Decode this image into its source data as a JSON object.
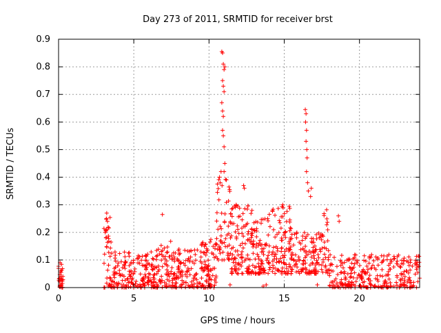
{
  "chart_data": {
    "type": "scatter",
    "title": "Day 273 of 2011, SRMTID for receiver brst",
    "xlabel": "GPS time / hours",
    "ylabel": "SRMTID / TECUs",
    "xlim": [
      0,
      24
    ],
    "ylim": [
      0,
      0.9
    ],
    "x_ticks": [
      0,
      5,
      10,
      15,
      20
    ],
    "y_ticks": [
      0,
      0.1,
      0.2,
      0.3,
      0.4,
      0.5,
      0.6,
      0.7,
      0.8,
      0.9
    ],
    "grid": true,
    "marker": "+",
    "color": "#ff0000",
    "series": [
      {
        "name": "SRMTID",
        "clusters": [
          {
            "x_range": [
              0.0,
              0.3
            ],
            "y_range": [
              0.0,
              0.09
            ],
            "n": 30
          },
          {
            "x_range": [
              3.0,
              3.5
            ],
            "y_range": [
              0.0,
              0.27
            ],
            "n": 40
          },
          {
            "x_range": [
              3.5,
              6.5
            ],
            "y_range": [
              0.0,
              0.13
            ],
            "n": 180
          },
          {
            "x_range": [
              6.5,
              7.5
            ],
            "y_range": [
              0.0,
              0.17
            ],
            "n": 60
          },
          {
            "x_range": [
              7.5,
              9.5
            ],
            "y_range": [
              0.0,
              0.14
            ],
            "n": 120
          },
          {
            "x_range": [
              9.5,
              10.5
            ],
            "y_range": [
              0.0,
              0.18
            ],
            "n": 80
          },
          {
            "x_range": [
              10.5,
              11.5
            ],
            "y_range": [
              0.1,
              0.4
            ],
            "n": 60
          },
          {
            "x_range": [
              11.5,
              13.0
            ],
            "y_range": [
              0.05,
              0.3
            ],
            "n": 120
          },
          {
            "x_range": [
              13.0,
              14.0
            ],
            "y_range": [
              0.05,
              0.25
            ],
            "n": 70
          },
          {
            "x_range": [
              14.0,
              15.5
            ],
            "y_range": [
              0.05,
              0.3
            ],
            "n": 110
          },
          {
            "x_range": [
              15.5,
              17.5
            ],
            "y_range": [
              0.05,
              0.2
            ],
            "n": 120
          },
          {
            "x_range": [
              17.5,
              18.0
            ],
            "y_range": [
              0.05,
              0.3
            ],
            "n": 30
          },
          {
            "x_range": [
              18.0,
              24.0
            ],
            "y_range": [
              0.0,
              0.12
            ],
            "n": 300
          }
        ],
        "points": [
          [
            0.1,
            0.09
          ],
          [
            6.9,
            0.265
          ],
          [
            12.3,
            0.37
          ],
          [
            12.35,
            0.36
          ],
          [
            11.8,
            0.3
          ],
          [
            18.6,
            0.26
          ],
          [
            18.65,
            0.24
          ],
          [
            14.9,
            0.3
          ],
          [
            13.9,
            0.25
          ],
          [
            16.8,
            0.36
          ],
          [
            16.75,
            0.33
          ],
          [
            3.2,
            0.27
          ],
          [
            3.25,
            0.24
          ],
          [
            3.1,
            0.2
          ],
          [
            3.15,
            0.18
          ],
          [
            10.85,
            0.855
          ],
          [
            10.9,
            0.85
          ],
          [
            10.95,
            0.81
          ],
          [
            11.0,
            0.79
          ],
          [
            11.05,
            0.8
          ],
          [
            10.9,
            0.75
          ],
          [
            10.95,
            0.73
          ],
          [
            11.0,
            0.71
          ],
          [
            10.85,
            0.67
          ],
          [
            10.9,
            0.64
          ],
          [
            10.95,
            0.62
          ],
          [
            10.9,
            0.57
          ],
          [
            10.95,
            0.55
          ],
          [
            11.0,
            0.51
          ],
          [
            11.05,
            0.45
          ],
          [
            11.0,
            0.42
          ],
          [
            10.8,
            0.42
          ],
          [
            10.7,
            0.4
          ],
          [
            10.75,
            0.38
          ],
          [
            16.4,
            0.645
          ],
          [
            16.45,
            0.63
          ],
          [
            16.42,
            0.6
          ],
          [
            16.48,
            0.57
          ],
          [
            16.45,
            0.53
          ],
          [
            16.5,
            0.5
          ],
          [
            16.52,
            0.47
          ],
          [
            16.48,
            0.42
          ],
          [
            16.55,
            0.38
          ],
          [
            16.6,
            0.35
          ],
          [
            13.8,
            0.01
          ],
          [
            17.2,
            0.01
          ],
          [
            18.5,
            0.01
          ],
          [
            11.4,
            0.01
          ],
          [
            13.6,
            0.005
          ]
        ]
      }
    ]
  }
}
